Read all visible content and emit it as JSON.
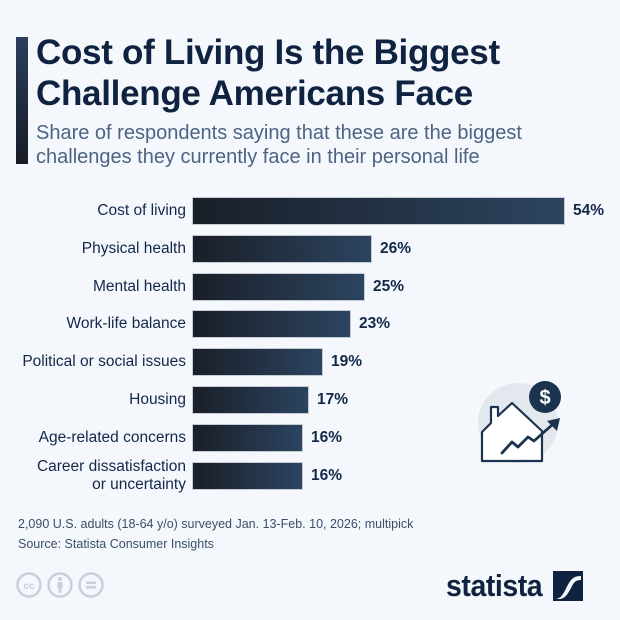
{
  "header": {
    "title": "Cost of Living Is the Biggest Challenge Americans Face",
    "subtitle": "Share of respondents saying that these are the biggest challenges they currently face in their personal life"
  },
  "chart_data": {
    "type": "bar",
    "orientation": "horizontal",
    "title": "Cost of Living Is the Biggest Challenge Americans Face",
    "subtitle": "Share of respondents saying that these are the biggest challenges they currently face in their personal life",
    "categories": [
      "Cost of living",
      "Physical health",
      "Mental health",
      "Work-life balance",
      "Political or social issues",
      "Housing",
      "Age-related concerns",
      "Career dissatisfaction\nor uncertainty"
    ],
    "values": [
      54,
      26,
      25,
      23,
      19,
      17,
      16,
      16
    ],
    "value_labels": [
      "54%",
      "26%",
      "25%",
      "23%",
      "19%",
      "17%",
      "16%",
      "16%"
    ],
    "unit": "%",
    "xlabel": "",
    "ylabel": "",
    "grid": false,
    "legend": "none",
    "bar_color_start": "#1a1f28",
    "bar_color_end": "#2c4460"
  },
  "footer": {
    "note": "2,090 U.S. adults (18-64 y/o) surveyed Jan. 13-Feb. 10, 2026; multipick",
    "source": "Source: Statista Consumer Insights",
    "license_icons": [
      "cc-icon",
      "by-attribution-icon",
      "no-derivatives-icon"
    ],
    "logo_text": "statista"
  },
  "illustration": {
    "icon": "house-rising-price-icon",
    "colors": {
      "circle_bg": "#e3e8ee",
      "dark": "#1c3350"
    }
  }
}
